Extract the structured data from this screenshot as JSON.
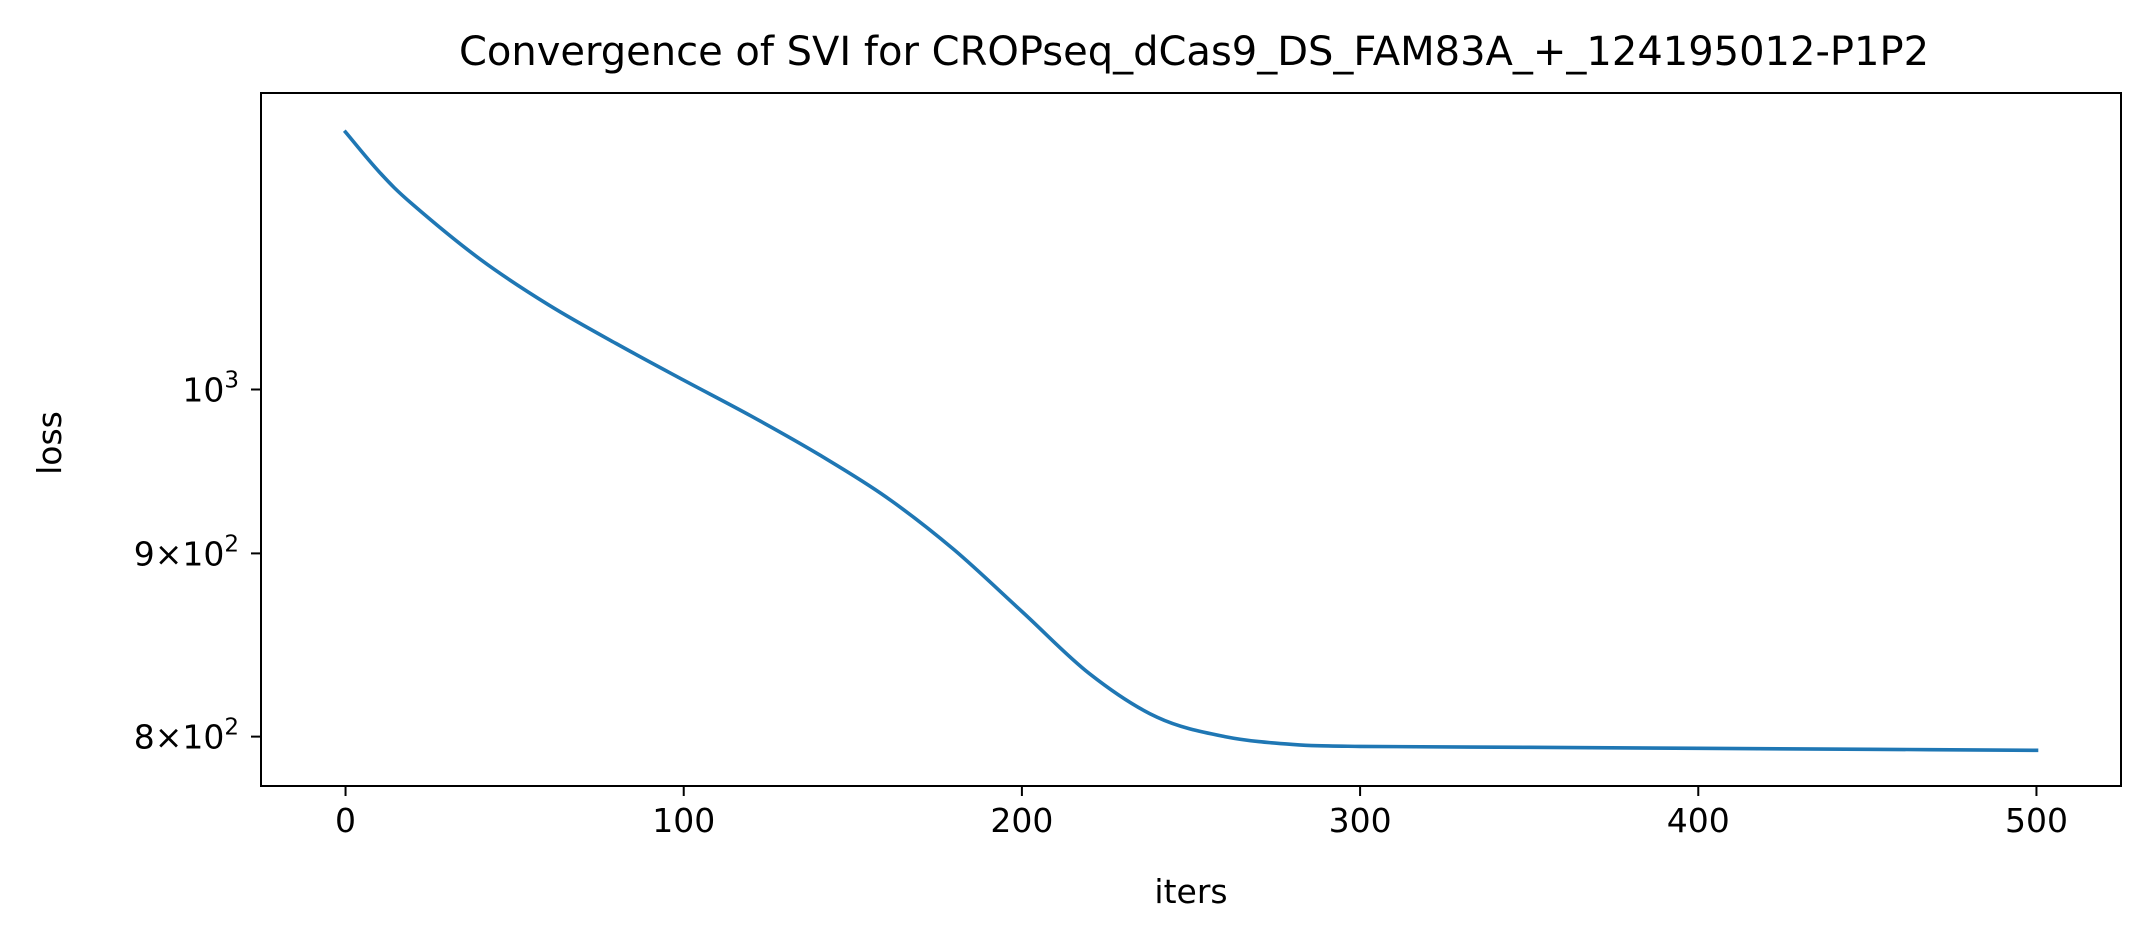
{
  "chart_data": {
    "type": "line",
    "title": "Convergence of SVI for CROPseq_dCas9_DS_FAM83A_+_124195012-P1P2",
    "xlabel": "iters",
    "ylabel": "loss",
    "yscale": "log",
    "xlim": [
      -25,
      525
    ],
    "ylim": [
      775,
      1210
    ],
    "grid": false,
    "x_ticks": [
      0,
      100,
      200,
      300,
      400,
      500
    ],
    "x_tick_labels": [
      "0",
      "100",
      "200",
      "300",
      "400",
      "500"
    ],
    "y_ticks": [
      {
        "value": 1000,
        "base": "10",
        "exp": "3",
        "mantissa": ""
      },
      {
        "value": 900,
        "base": "10",
        "exp": "2",
        "mantissa": "9×"
      },
      {
        "value": 800,
        "base": "10",
        "exp": "2",
        "mantissa": "8×"
      }
    ],
    "series": [
      {
        "color": "#1f77b4",
        "x": [
          0,
          10,
          20,
          40,
          60,
          80,
          100,
          120,
          140,
          160,
          180,
          200,
          220,
          240,
          260,
          280,
          300,
          350,
          400,
          450,
          500
        ],
        "y": [
          1180,
          1150,
          1126,
          1087,
          1056,
          1030,
          1006,
          983,
          959,
          933,
          902,
          867,
          833,
          810,
          800,
          796,
          795,
          794.5,
          794,
          793.5,
          793
        ]
      }
    ]
  }
}
